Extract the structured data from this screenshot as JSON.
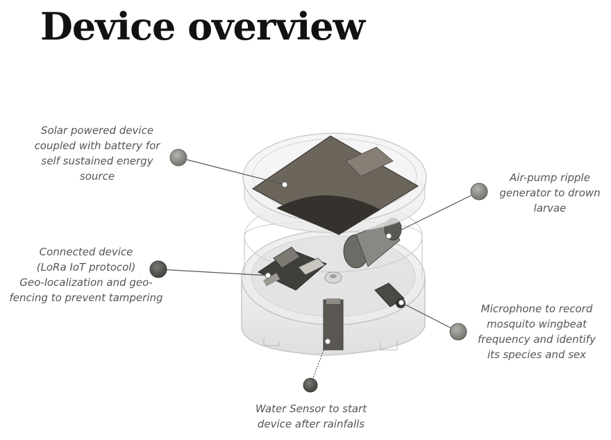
{
  "title": "Device overview",
  "callouts": {
    "solar": [
      "Solar powered device",
      "coupled with battery for",
      "self sustained energy",
      "source"
    ],
    "connected": [
      "Connected device",
      "(LoRa IoT protocol)",
      "Geo-localization and geo-",
      "fencing to prevent tampering"
    ],
    "air_pump": [
      "Air-pump ripple",
      "generator to drown",
      "larvae"
    ],
    "microphone": [
      "Microphone to record",
      "mosquito wingbeat",
      "frequency and identify",
      "its species and sex"
    ],
    "water_sensor": [
      "Water Sensor to start",
      "device after rainfalls"
    ]
  },
  "colors": {
    "title": "#111111",
    "label_text": "#555555",
    "marker_fill": "#8a8a84",
    "marker_dark": "#4a4a46",
    "casing_stroke": "#bdbdbd",
    "solar_panel": "#6b655c"
  }
}
